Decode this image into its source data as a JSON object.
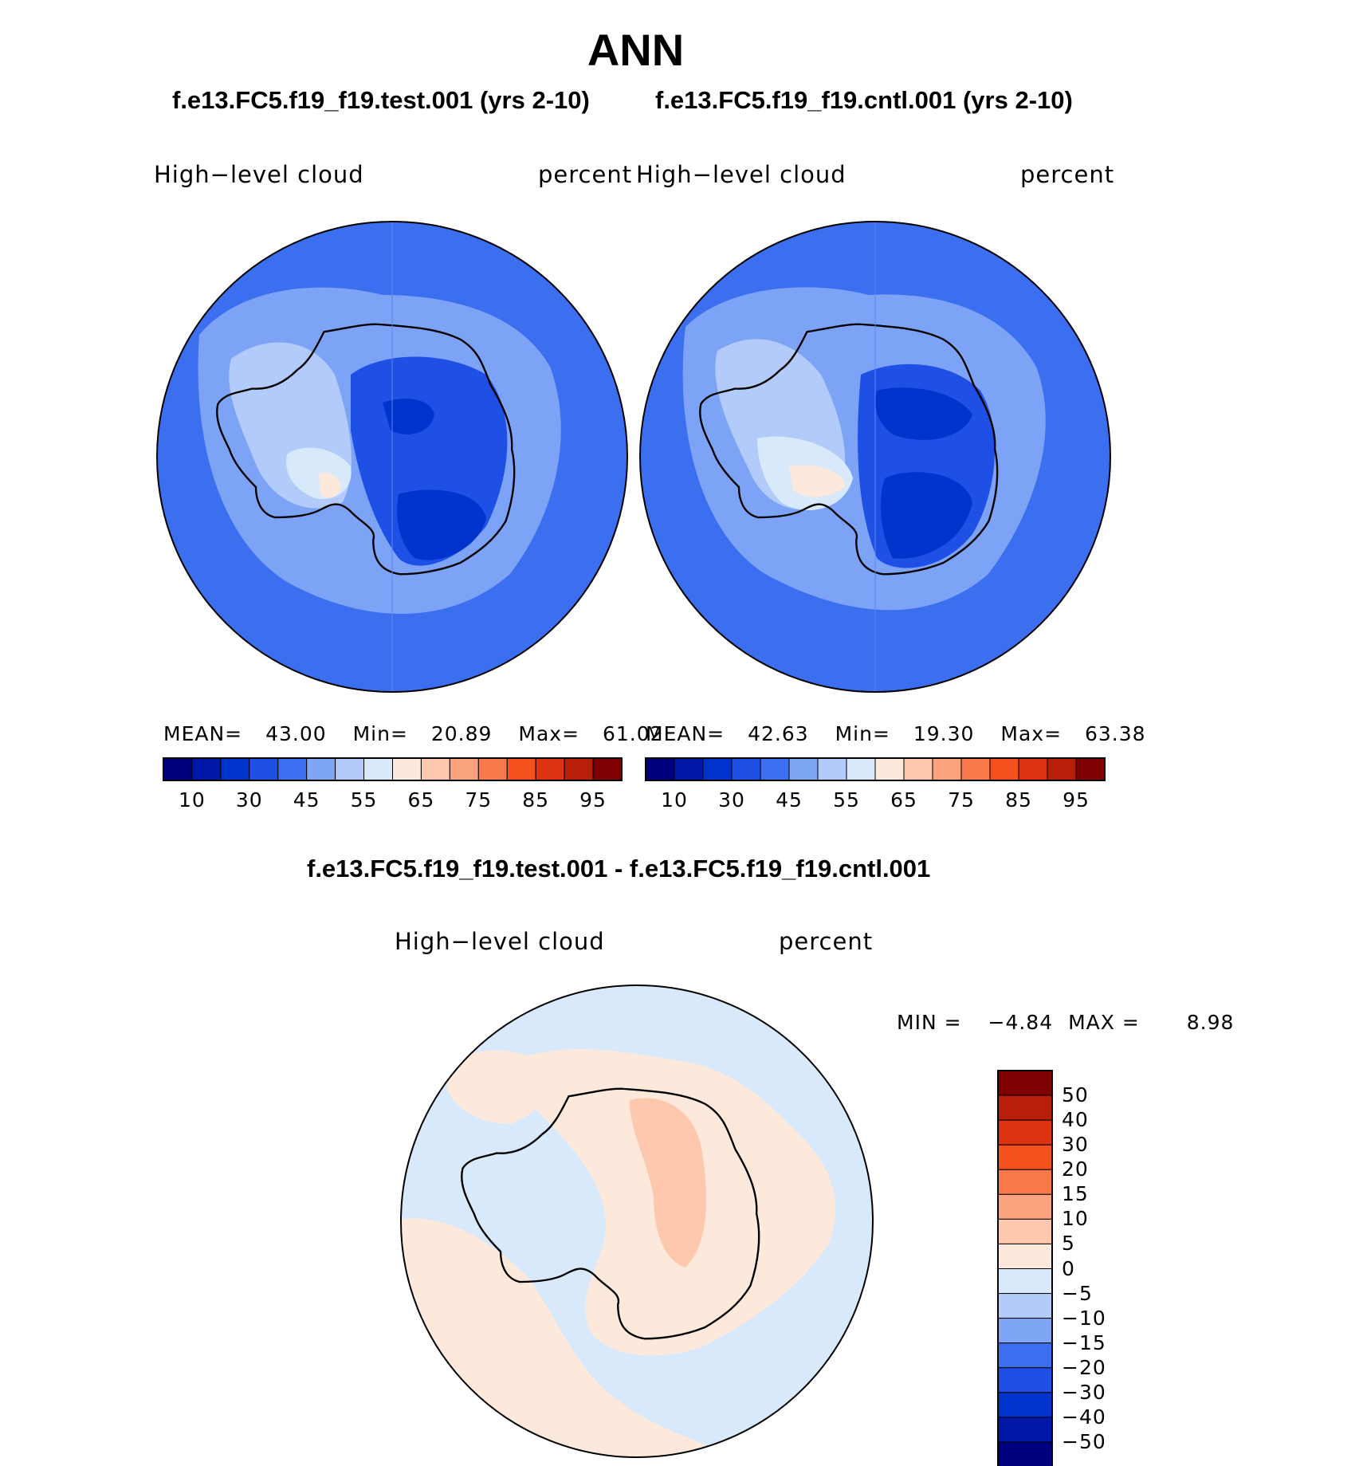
{
  "figure": {
    "season": "ANN",
    "test_case_title": "f.e13.FC5.f19_f19.test.001 (yrs 2-10)",
    "cntl_case_title": "f.e13.FC5.f19_f19.cntl.001 (yrs 2-10)",
    "diff_title": "f.e13.FC5.f19_f19.test.001 - f.e13.FC5.f19_f19.cntl.001"
  },
  "panels": [
    {
      "id": "test",
      "variable": "High−level cloud",
      "units": "percent",
      "stats": {
        "mean_label": "MEAN=",
        "mean": "43.00",
        "min_label": "Min=",
        "min": "20.89",
        "max_label": "Max=",
        "max": "61.02"
      }
    },
    {
      "id": "cntl",
      "variable": "High−level cloud",
      "units": "percent",
      "stats": {
        "mean_label": "MEAN=",
        "mean": "42.63",
        "min_label": "Min=",
        "min": "19.30",
        "max_label": "Max=",
        "max": "63.38"
      }
    },
    {
      "id": "diff",
      "variable": "High−level cloud",
      "units": "percent",
      "stats": {
        "min_label": "MIN =",
        "min": "−4.84",
        "max_label": "MAX =",
        "max": "8.98"
      }
    }
  ],
  "colorbars": {
    "horizontal": {
      "colors": [
        "#00007f",
        "#0018a8",
        "#0033cc",
        "#1e50e6",
        "#3c6ef0",
        "#7fa5f5",
        "#b2cbfa",
        "#d9e9fc",
        "#fde9dc",
        "#fdc8ae",
        "#fca27e",
        "#f87a4a",
        "#f4511e",
        "#de3310",
        "#b71f0a",
        "#7f0000"
      ],
      "tick_labels": [
        "10",
        "30",
        "45",
        "55",
        "65",
        "75",
        "85",
        "95"
      ]
    },
    "vertical": {
      "colors_top_to_bottom": [
        "#7f0000",
        "#b71f0a",
        "#de3310",
        "#f4511e",
        "#f87a4a",
        "#fca27e",
        "#fdc8ae",
        "#fde9dc",
        "#d9e9fc",
        "#b2cbfa",
        "#7fa5f5",
        "#3c6ef0",
        "#1e50e6",
        "#0033cc",
        "#0018a8",
        "#00007f"
      ],
      "tick_labels_top_to_bottom": [
        "50",
        "40",
        "30",
        "20",
        "15",
        "10",
        "5",
        "0",
        "−5",
        "−10",
        "−15",
        "−20",
        "−30",
        "−40",
        "−50"
      ]
    }
  },
  "map_colors": {
    "background_test": "#3c6ef0",
    "background_cntl": "#3c6ef0",
    "background_diff": "#d9e9fc",
    "positive_diff": "#fde9dc",
    "positive_diff_strong": "#fdc8ae"
  }
}
